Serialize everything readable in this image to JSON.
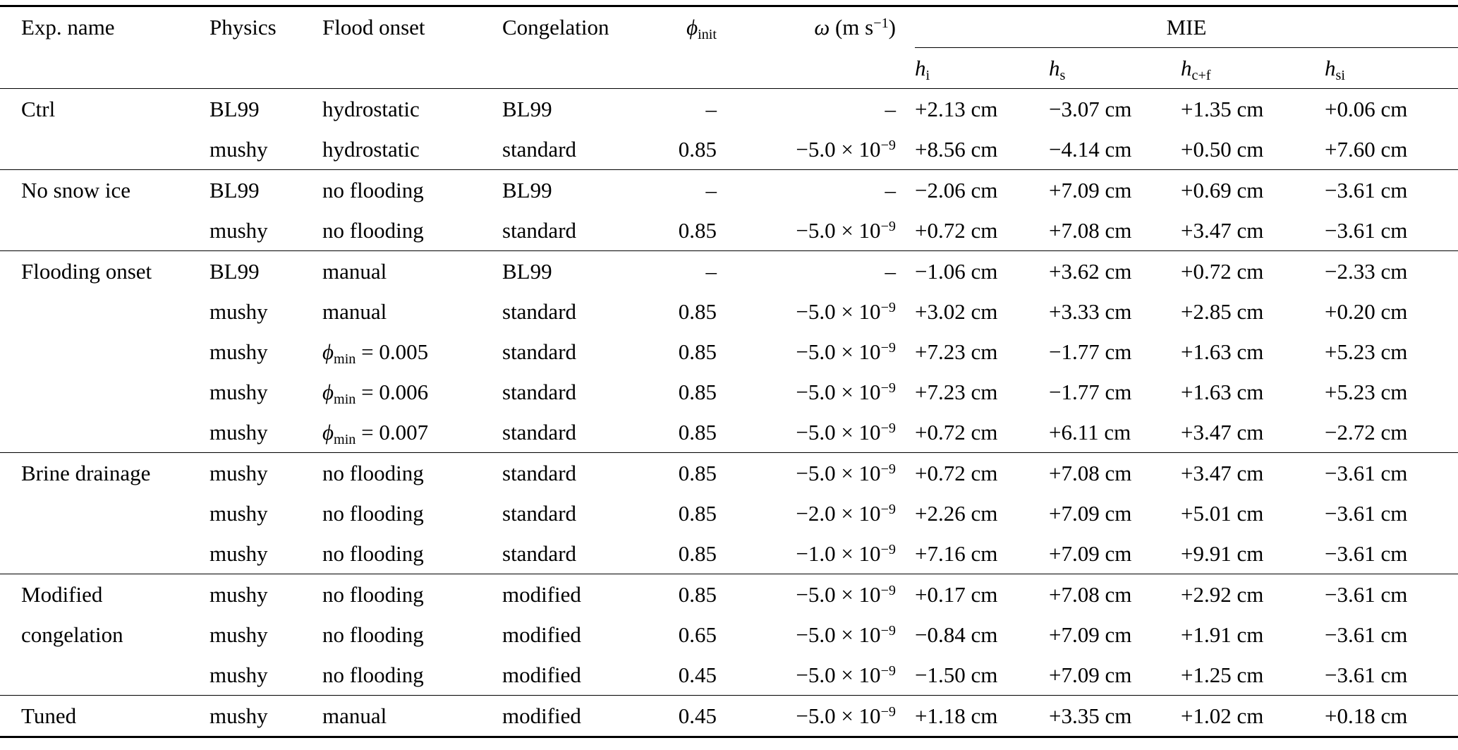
{
  "page": {
    "background": "#ffffff",
    "text_color": "#000000"
  },
  "table": {
    "headers": {
      "exp": "Exp. name",
      "physics": "Physics",
      "flood": "Flood onset",
      "congelation": "Congelation",
      "phi": "*ϕ*_{init}",
      "omega": "*ω* (m s^{−1})",
      "mie_group": "MIE",
      "mie_sub": [
        "*h*_{i}",
        "*h*_{s}",
        "*h*_{c+f}",
        "*h*_{si}"
      ]
    },
    "groups": [
      {
        "label": "Ctrl",
        "rows": [
          [
            "Ctrl",
            "BL99",
            "hydrostatic",
            "BL99",
            "–",
            "–",
            "+2.13 cm",
            "−3.07 cm",
            "+1.35 cm",
            "+0.06 cm"
          ],
          [
            "",
            "mushy",
            "hydrostatic",
            "standard",
            "0.85",
            "−5.0 × 10^{−9}",
            "+8.56 cm",
            "−4.14 cm",
            "+0.50 cm",
            "+7.60 cm"
          ]
        ]
      },
      {
        "label": "No snow ice",
        "rows": [
          [
            "No snow ice",
            "BL99",
            "no flooding",
            "BL99",
            "–",
            "–",
            "−2.06 cm",
            "+7.09 cm",
            "+0.69 cm",
            "−3.61 cm"
          ],
          [
            "",
            "mushy",
            "no flooding",
            "standard",
            "0.85",
            "−5.0 × 10^{−9}",
            "+0.72 cm",
            "+7.08 cm",
            "+3.47 cm",
            "−3.61 cm"
          ]
        ]
      },
      {
        "label": "Flooding onset",
        "rows": [
          [
            "Flooding onset",
            "BL99",
            "manual",
            "BL99",
            "–",
            "–",
            "−1.06 cm",
            "+3.62 cm",
            "+0.72 cm",
            "−2.33 cm"
          ],
          [
            "",
            "mushy",
            "manual",
            "standard",
            "0.85",
            "−5.0 × 10^{−9}",
            "+3.02 cm",
            "+3.33 cm",
            "+2.85 cm",
            "+0.20 cm"
          ],
          [
            "",
            "mushy",
            "*ϕ*_{min} = 0.005",
            "standard",
            "0.85",
            "−5.0 × 10^{−9}",
            "+7.23 cm",
            "−1.77 cm",
            "+1.63 cm",
            "+5.23 cm"
          ],
          [
            "",
            "mushy",
            "*ϕ*_{min} = 0.006",
            "standard",
            "0.85",
            "−5.0 × 10^{−9}",
            "+7.23 cm",
            "−1.77 cm",
            "+1.63 cm",
            "+5.23 cm"
          ],
          [
            "",
            "mushy",
            "*ϕ*_{min} = 0.007",
            "standard",
            "0.85",
            "−5.0 × 10^{−9}",
            "+0.72 cm",
            "+6.11 cm",
            "+3.47 cm",
            "−2.72 cm"
          ]
        ]
      },
      {
        "label": "Brine drainage",
        "rows": [
          [
            "Brine drainage",
            "mushy",
            "no flooding",
            "standard",
            "0.85",
            "−5.0 × 10^{−9}",
            "+0.72 cm",
            "+7.08 cm",
            "+3.47 cm",
            "−3.61 cm"
          ],
          [
            "",
            "mushy",
            "no flooding",
            "standard",
            "0.85",
            "−2.0 × 10^{−9}",
            "+2.26 cm",
            "+7.09 cm",
            "+5.01 cm",
            "−3.61 cm"
          ],
          [
            "",
            "mushy",
            "no flooding",
            "standard",
            "0.85",
            "−1.0 × 10^{−9}",
            "+7.16 cm",
            "+7.09 cm",
            "+9.91 cm",
            "−3.61 cm"
          ]
        ]
      },
      {
        "label": "Modified congelation",
        "rows": [
          [
            "Modified",
            "mushy",
            "no flooding",
            "modified",
            "0.85",
            "−5.0 × 10^{−9}",
            "+0.17 cm",
            "+7.08 cm",
            "+2.92 cm",
            "−3.61 cm"
          ],
          [
            "congelation",
            "mushy",
            "no flooding",
            "modified",
            "0.65",
            "−5.0 × 10^{−9}",
            "−0.84 cm",
            "+7.09 cm",
            "+1.91 cm",
            "−3.61 cm"
          ],
          [
            "",
            "mushy",
            "no flooding",
            "modified",
            "0.45",
            "−5.0 × 10^{−9}",
            "−1.50 cm",
            "+7.09 cm",
            "+1.25 cm",
            "−3.61 cm"
          ]
        ]
      },
      {
        "label": "Tuned",
        "rows": [
          [
            "Tuned",
            "mushy",
            "manual",
            "modified",
            "0.45",
            "−5.0 × 10^{−9}",
            "+1.18 cm",
            "+3.35 cm",
            "+1.02 cm",
            "+0.18 cm"
          ]
        ]
      }
    ]
  }
}
